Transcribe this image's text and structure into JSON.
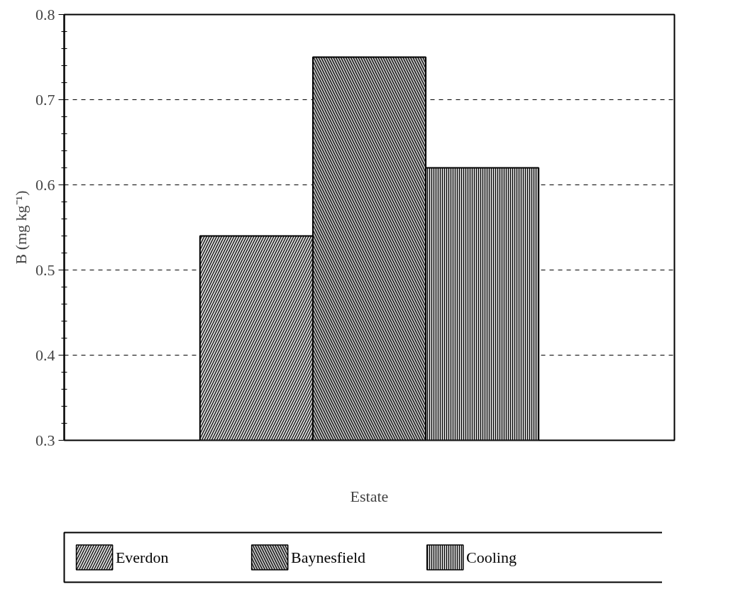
{
  "chart_data": {
    "type": "bar",
    "xlabel": "Estate",
    "ylabel": "B (mg kg⁻¹)",
    "categories": [
      null
    ],
    "series": [
      {
        "name": "Everdon",
        "color": "#d9d9d9",
        "values": [
          0.54
        ]
      },
      {
        "name": "Baynesfield",
        "color": "#bdbdbd",
        "values": [
          0.75
        ]
      },
      {
        "name": "Cooling",
        "color": "#cbcbcb",
        "values": [
          0.62
        ]
      }
    ],
    "ylim": [
      0.3,
      0.8
    ],
    "yticks": [
      0.3,
      0.4,
      0.5,
      0.6,
      0.7,
      0.8
    ],
    "grid": "y",
    "legend": "bottom",
    "tick_labels": "y"
  }
}
